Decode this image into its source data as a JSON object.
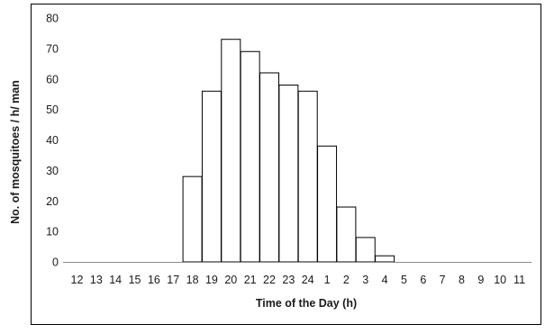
{
  "chart_data": {
    "type": "bar",
    "title": "",
    "xlabel": "Time of the Day (h)",
    "ylabel": "No. of mosquitoes / h/ man",
    "ylim": [
      0,
      80
    ],
    "yticks": [
      0,
      10,
      20,
      30,
      40,
      50,
      60,
      70,
      80
    ],
    "categories": [
      "12",
      "13",
      "14",
      "15",
      "16",
      "17",
      "18",
      "19",
      "20",
      "21",
      "22",
      "23",
      "24",
      "1",
      "2",
      "3",
      "4",
      "5",
      "6",
      "7",
      "8",
      "9",
      "10",
      "11"
    ],
    "values": [
      0,
      0,
      0,
      0,
      0,
      0,
      28,
      56,
      73,
      69,
      62,
      58,
      56,
      38,
      18,
      8,
      2,
      0,
      0,
      0,
      0,
      0,
      0,
      0
    ],
    "grid": false,
    "legend": "none",
    "bar_fill": "#ffffff",
    "bar_stroke": "#000000"
  }
}
